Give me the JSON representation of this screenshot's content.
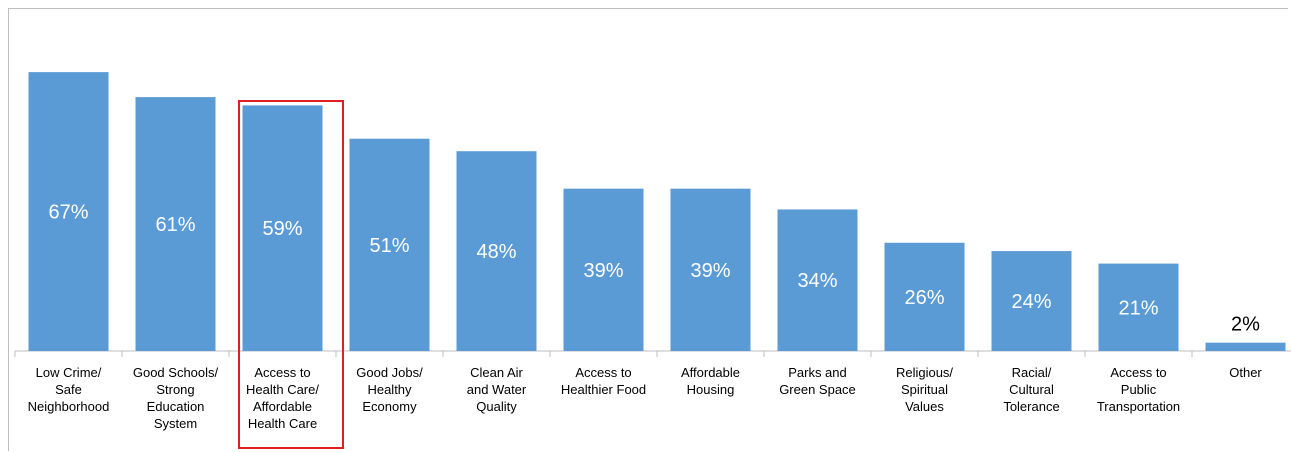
{
  "chart_data": {
    "type": "bar",
    "categories": [
      [
        "Low Crime/",
        "Safe",
        "Neighborhood"
      ],
      [
        "Good Schools/",
        "Strong",
        "Education",
        "System"
      ],
      [
        "Access to",
        "Health Care/",
        "Affordable",
        "Health Care"
      ],
      [
        "Good Jobs/",
        "Healthy",
        "Economy"
      ],
      [
        "Clean Air",
        "and Water",
        "Quality"
      ],
      [
        "Access to",
        "Healthier Food"
      ],
      [
        "Affordable",
        "Housing"
      ],
      [
        "Parks and",
        "Green Space"
      ],
      [
        "Religious/",
        "Spiritual",
        "Values"
      ],
      [
        "Racial/",
        "Cultural",
        "Tolerance"
      ],
      [
        "Access to",
        "Public",
        "Transportation"
      ],
      [
        "Other"
      ]
    ],
    "values": [
      67,
      61,
      59,
      51,
      48,
      39,
      39,
      34,
      26,
      24,
      21,
      2
    ],
    "value_labels": [
      "67%",
      "61%",
      "59%",
      "51%",
      "48%",
      "39%",
      "39%",
      "34%",
      "26%",
      "24%",
      "21%",
      "2%"
    ],
    "ylim": [
      0,
      80
    ],
    "bar_color": "#5b9bd5",
    "highlight_index": 2,
    "highlight_color": "#e02020",
    "grid": false
  }
}
